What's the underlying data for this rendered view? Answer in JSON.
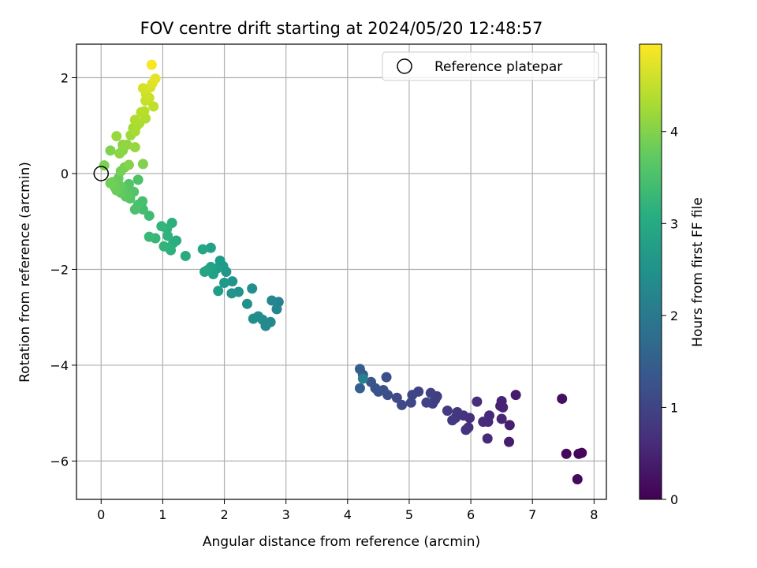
{
  "chart_data": {
    "type": "scatter",
    "title": "FOV centre drift starting at 2024/05/20 12:48:57",
    "xlabel": "Angular distance from reference (arcmin)",
    "ylabel": "Rotation from reference (arcmin)",
    "colorbar_label": "Hours from first FF file",
    "xlim": [
      -0.4,
      8.2
    ],
    "ylim": [
      -6.8,
      2.7
    ],
    "xticks": [
      0,
      1,
      2,
      3,
      4,
      5,
      6,
      7,
      8
    ],
    "yticks": [
      -6,
      -4,
      -2,
      0,
      2
    ],
    "colorbar_range": [
      0,
      4.95
    ],
    "colorbar_ticks": [
      0,
      1,
      2,
      3,
      4
    ],
    "grid": true,
    "colormap": "viridis",
    "legend": {
      "position": "top-right",
      "entries": [
        "Reference platepar"
      ]
    },
    "reference_point": {
      "x": 0,
      "y": 0
    },
    "points": [
      {
        "x": 7.75,
        "y": -5.85,
        "c": 0.05
      },
      {
        "x": 7.8,
        "y": -5.83,
        "c": 0.08
      },
      {
        "x": 7.55,
        "y": -5.85,
        "c": 0.1
      },
      {
        "x": 7.73,
        "y": -6.38,
        "c": 0.12
      },
      {
        "x": 7.48,
        "y": -4.7,
        "c": 0.2
      },
      {
        "x": 6.73,
        "y": -4.62,
        "c": 0.35
      },
      {
        "x": 6.62,
        "y": -5.6,
        "c": 0.4
      },
      {
        "x": 6.63,
        "y": -5.25,
        "c": 0.42
      },
      {
        "x": 6.48,
        "y": -4.85,
        "c": 0.45
      },
      {
        "x": 6.5,
        "y": -4.75,
        "c": 0.48
      },
      {
        "x": 6.52,
        "y": -4.88,
        "c": 0.5
      },
      {
        "x": 6.5,
        "y": -5.12,
        "c": 0.52
      },
      {
        "x": 6.3,
        "y": -5.05,
        "c": 0.55
      },
      {
        "x": 6.27,
        "y": -5.53,
        "c": 0.58
      },
      {
        "x": 6.28,
        "y": -5.18,
        "c": 0.6
      },
      {
        "x": 6.2,
        "y": -5.18,
        "c": 0.62
      },
      {
        "x": 6.1,
        "y": -4.76,
        "c": 0.65
      },
      {
        "x": 5.98,
        "y": -5.1,
        "c": 0.68
      },
      {
        "x": 5.96,
        "y": -5.3,
        "c": 0.7
      },
      {
        "x": 5.92,
        "y": -5.35,
        "c": 0.72
      },
      {
        "x": 5.88,
        "y": -5.05,
        "c": 0.75
      },
      {
        "x": 5.78,
        "y": -4.98,
        "c": 0.78
      },
      {
        "x": 5.75,
        "y": -5.1,
        "c": 0.8
      },
      {
        "x": 5.7,
        "y": -5.15,
        "c": 0.82
      },
      {
        "x": 5.62,
        "y": -4.95,
        "c": 0.85
      },
      {
        "x": 5.45,
        "y": -4.65,
        "c": 0.88
      },
      {
        "x": 5.42,
        "y": -4.72,
        "c": 0.9
      },
      {
        "x": 5.38,
        "y": -4.8,
        "c": 0.92
      },
      {
        "x": 5.35,
        "y": -4.58,
        "c": 0.95
      },
      {
        "x": 5.28,
        "y": -4.78,
        "c": 0.98
      },
      {
        "x": 5.15,
        "y": -4.55,
        "c": 1.0
      },
      {
        "x": 5.05,
        "y": -4.62,
        "c": 1.02
      },
      {
        "x": 5.03,
        "y": -4.78,
        "c": 1.05
      },
      {
        "x": 4.88,
        "y": -4.83,
        "c": 1.08
      },
      {
        "x": 4.8,
        "y": -4.68,
        "c": 1.1
      },
      {
        "x": 4.65,
        "y": -4.62,
        "c": 1.15
      },
      {
        "x": 4.63,
        "y": -4.25,
        "c": 1.18
      },
      {
        "x": 4.58,
        "y": -4.52,
        "c": 1.2
      },
      {
        "x": 4.5,
        "y": -4.55,
        "c": 1.25
      },
      {
        "x": 4.45,
        "y": -4.48,
        "c": 1.28
      },
      {
        "x": 4.38,
        "y": -4.35,
        "c": 1.32
      },
      {
        "x": 4.25,
        "y": -4.2,
        "c": 1.4
      },
      {
        "x": 4.2,
        "y": -4.08,
        "c": 1.45
      },
      {
        "x": 4.2,
        "y": -4.48,
        "c": 1.5
      },
      {
        "x": 4.25,
        "y": -4.28,
        "c": 2.15
      },
      {
        "x": 2.88,
        "y": -2.68,
        "c": 2.2
      },
      {
        "x": 2.85,
        "y": -2.83,
        "c": 2.25
      },
      {
        "x": 2.77,
        "y": -2.65,
        "c": 2.3
      },
      {
        "x": 2.75,
        "y": -3.1,
        "c": 2.32
      },
      {
        "x": 2.67,
        "y": -3.18,
        "c": 2.35
      },
      {
        "x": 2.62,
        "y": -3.05,
        "c": 2.38
      },
      {
        "x": 2.55,
        "y": -2.98,
        "c": 2.4
      },
      {
        "x": 2.47,
        "y": -3.03,
        "c": 2.42
      },
      {
        "x": 2.45,
        "y": -2.4,
        "c": 2.45
      },
      {
        "x": 2.37,
        "y": -2.72,
        "c": 2.48
      },
      {
        "x": 2.23,
        "y": -2.47,
        "c": 2.52
      },
      {
        "x": 2.12,
        "y": -2.5,
        "c": 2.55
      },
      {
        "x": 2.13,
        "y": -2.25,
        "c": 2.58
      },
      {
        "x": 2.03,
        "y": -2.05,
        "c": 2.62
      },
      {
        "x": 2.0,
        "y": -2.28,
        "c": 2.65
      },
      {
        "x": 1.98,
        "y": -1.93,
        "c": 2.68
      },
      {
        "x": 1.93,
        "y": -1.82,
        "c": 2.72
      },
      {
        "x": 1.9,
        "y": -2.45,
        "c": 2.75
      },
      {
        "x": 1.88,
        "y": -1.98,
        "c": 2.78
      },
      {
        "x": 1.82,
        "y": -2.1,
        "c": 2.8
      },
      {
        "x": 1.78,
        "y": -1.55,
        "c": 2.82
      },
      {
        "x": 1.78,
        "y": -1.95,
        "c": 2.85
      },
      {
        "x": 1.72,
        "y": -2.02,
        "c": 2.88
      },
      {
        "x": 1.68,
        "y": -2.05,
        "c": 2.9
      },
      {
        "x": 1.65,
        "y": -1.58,
        "c": 2.92
      },
      {
        "x": 1.37,
        "y": -1.72,
        "c": 3.0
      },
      {
        "x": 1.22,
        "y": -1.4,
        "c": 3.05
      },
      {
        "x": 1.17,
        "y": -1.45,
        "c": 3.08
      },
      {
        "x": 1.15,
        "y": -1.03,
        "c": 3.1
      },
      {
        "x": 1.13,
        "y": -1.6,
        "c": 3.12
      },
      {
        "x": 1.1,
        "y": -1.55,
        "c": 3.15
      },
      {
        "x": 1.08,
        "y": -1.3,
        "c": 3.18
      },
      {
        "x": 1.07,
        "y": -1.15,
        "c": 3.2
      },
      {
        "x": 1.02,
        "y": -1.52,
        "c": 3.22
      },
      {
        "x": 0.98,
        "y": -1.1,
        "c": 3.25
      },
      {
        "x": 0.88,
        "y": -1.35,
        "c": 3.3
      },
      {
        "x": 0.78,
        "y": -1.32,
        "c": 3.35
      },
      {
        "x": 0.78,
        "y": -0.88,
        "c": 3.4
      },
      {
        "x": 0.68,
        "y": -0.75,
        "c": 3.45
      },
      {
        "x": 0.67,
        "y": -0.58,
        "c": 3.48
      },
      {
        "x": 0.6,
        "y": -0.65,
        "c": 3.5
      },
      {
        "x": 0.55,
        "y": -0.75,
        "c": 3.52
      },
      {
        "x": 0.6,
        "y": -0.13,
        "c": 3.55
      },
      {
        "x": 0.53,
        "y": -0.38,
        "c": 3.58
      },
      {
        "x": 0.47,
        "y": -0.52,
        "c": 3.6
      },
      {
        "x": 0.45,
        "y": -0.22,
        "c": 3.62
      },
      {
        "x": 0.42,
        "y": -0.42,
        "c": 3.65
      },
      {
        "x": 0.4,
        "y": -0.48,
        "c": 3.68
      },
      {
        "x": 0.35,
        "y": -0.3,
        "c": 3.7
      },
      {
        "x": 0.32,
        "y": -0.4,
        "c": 3.72
      },
      {
        "x": 0.3,
        "y": -0.25,
        "c": 3.75
      },
      {
        "x": 0.28,
        "y": -0.1,
        "c": 3.78
      },
      {
        "x": 0.25,
        "y": -0.35,
        "c": 3.8
      },
      {
        "x": 0.22,
        "y": -0.28,
        "c": 3.82
      },
      {
        "x": 0.18,
        "y": -0.18,
        "c": 3.85
      },
      {
        "x": 0.15,
        "y": -0.2,
        "c": 3.88
      },
      {
        "x": 0.32,
        "y": 0.05,
        "c": 3.9
      },
      {
        "x": 0.38,
        "y": 0.13,
        "c": 3.92
      },
      {
        "x": 0.05,
        "y": 0.17,
        "c": 3.95
      },
      {
        "x": 0.15,
        "y": 0.48,
        "c": 3.98
      },
      {
        "x": 0.68,
        "y": 0.2,
        "c": 4.0
      },
      {
        "x": 0.45,
        "y": 0.18,
        "c": 4.02
      },
      {
        "x": 0.35,
        "y": 0.48,
        "c": 4.05
      },
      {
        "x": 0.3,
        "y": 0.42,
        "c": 4.08
      },
      {
        "x": 0.35,
        "y": 0.6,
        "c": 4.1
      },
      {
        "x": 0.42,
        "y": 0.6,
        "c": 4.12
      },
      {
        "x": 0.55,
        "y": 0.55,
        "c": 4.15
      },
      {
        "x": 0.25,
        "y": 0.78,
        "c": 4.18
      },
      {
        "x": 0.48,
        "y": 0.8,
        "c": 4.22
      },
      {
        "x": 0.52,
        "y": 0.95,
        "c": 4.25
      },
      {
        "x": 0.55,
        "y": 0.88,
        "c": 4.28
      },
      {
        "x": 0.58,
        "y": 1.0,
        "c": 4.3
      },
      {
        "x": 0.62,
        "y": 1.05,
        "c": 4.32
      },
      {
        "x": 0.55,
        "y": 1.12,
        "c": 4.35
      },
      {
        "x": 0.72,
        "y": 1.15,
        "c": 4.38
      },
      {
        "x": 0.65,
        "y": 1.28,
        "c": 4.4
      },
      {
        "x": 0.7,
        "y": 1.3,
        "c": 4.42
      },
      {
        "x": 0.85,
        "y": 1.4,
        "c": 4.48
      },
      {
        "x": 0.72,
        "y": 1.52,
        "c": 4.52
      },
      {
        "x": 0.78,
        "y": 1.58,
        "c": 4.55
      },
      {
        "x": 0.73,
        "y": 1.65,
        "c": 4.58
      },
      {
        "x": 0.68,
        "y": 1.78,
        "c": 4.62
      },
      {
        "x": 0.8,
        "y": 1.8,
        "c": 4.65
      },
      {
        "x": 0.83,
        "y": 1.88,
        "c": 4.7
      },
      {
        "x": 0.88,
        "y": 1.98,
        "c": 4.75
      },
      {
        "x": 0.82,
        "y": 2.27,
        "c": 4.9
      }
    ]
  }
}
